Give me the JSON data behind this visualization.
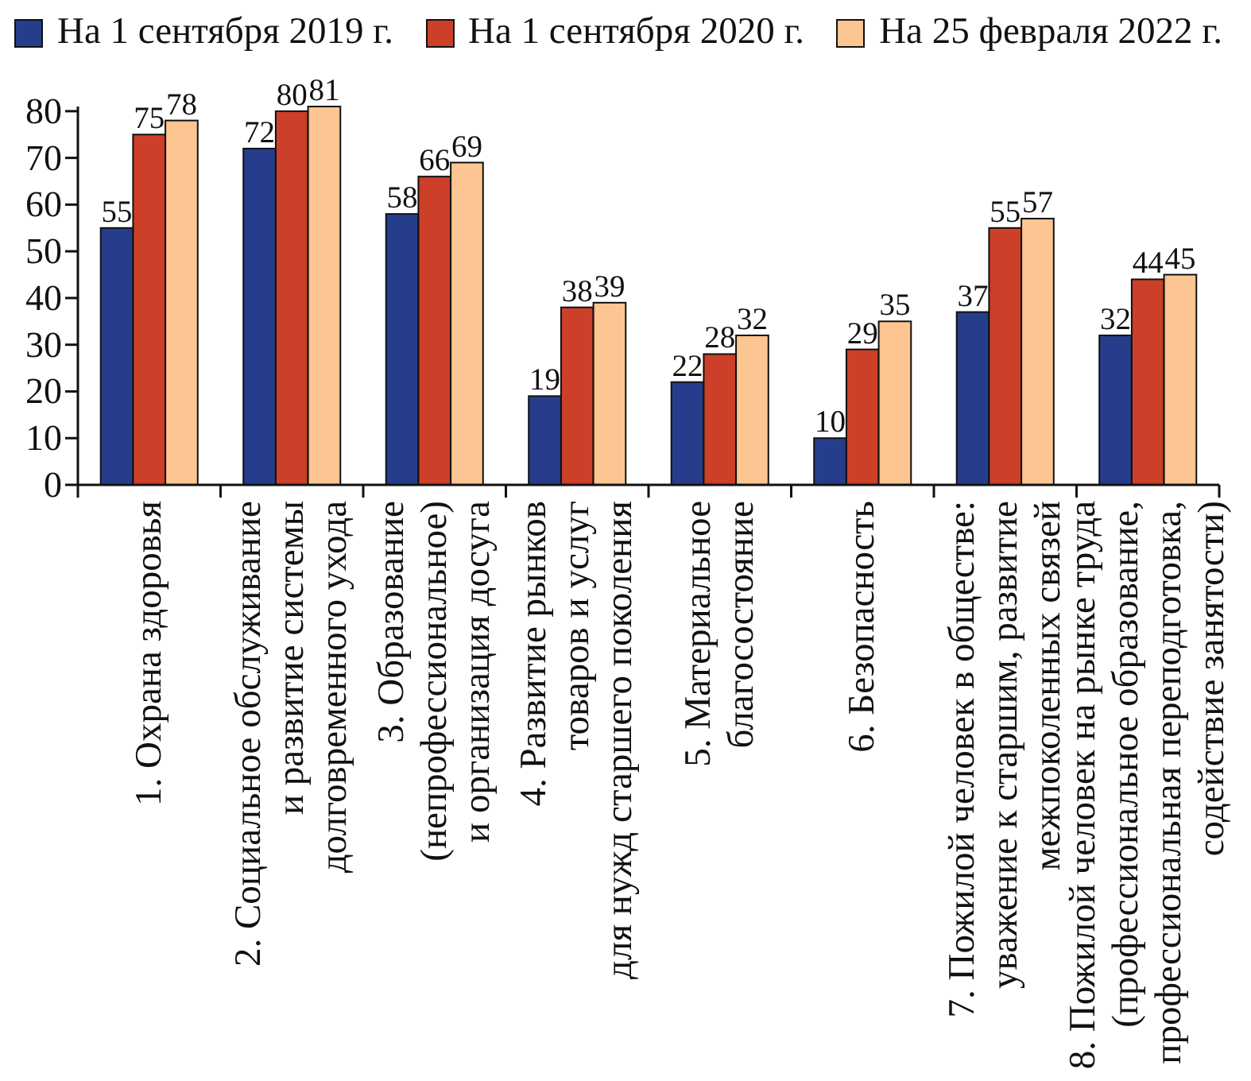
{
  "chart_data": {
    "type": "bar",
    "categories": [
      "1. Охрана здоровья",
      "2. Социальное обслуживание\nи развитие системы\nдолговременного ухода",
      "3. Образование\n(непрофессиональное)\nи организация досуга",
      "4. Развитие рынков\nтоваров и услуг\nдля нужд старшего поколения",
      "5. Материальное\nблагосостояние",
      "6. Безопасность",
      "7. Пожилой человек в обществе:\nуважение к старшим, развитие\nмежпоколенных связей",
      "8. Пожилой человек на рынке труда\n(профессиональное образование,\nпрофессиональная переподготовка,\nсодействие занятости)"
    ],
    "series": [
      {
        "name": "На 1 сентября 2019 г.",
        "color": "#263d8c",
        "values": [
          55,
          72,
          58,
          19,
          22,
          10,
          37,
          32
        ]
      },
      {
        "name": "На 1 сентября 2020 г.",
        "color": "#cc3f28",
        "values": [
          75,
          80,
          66,
          38,
          28,
          29,
          55,
          44
        ]
      },
      {
        "name": "На 25 февраля 2022 г.",
        "color": "#fdc591",
        "values": [
          78,
          81,
          69,
          39,
          32,
          35,
          57,
          45
        ]
      }
    ],
    "ylim": [
      0,
      81
    ],
    "yticks": [
      0,
      10,
      20,
      30,
      40,
      50,
      60,
      70,
      80
    ],
    "data_labels": true,
    "legend": "top",
    "grid": false
  }
}
